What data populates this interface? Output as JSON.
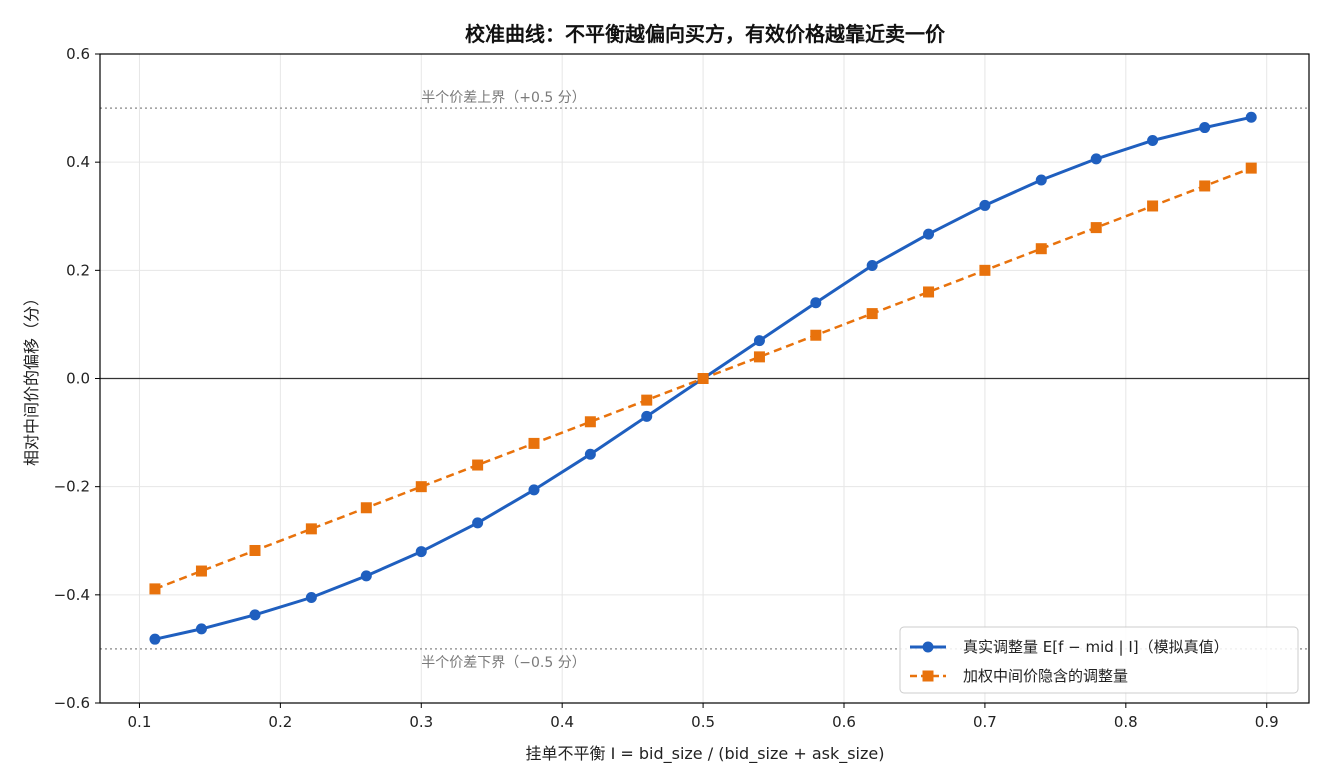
{
  "chart_data": {
    "type": "line",
    "title": "校准曲线：不平衡越偏向买方，有效价格越靠近卖一价",
    "xlabel": "挂单不平衡 I = bid_size / (bid_size + ask_size)",
    "ylabel": "相对中间价的偏移（分）",
    "xlim": [
      0.072,
      0.93
    ],
    "ylim": [
      -0.6,
      0.6
    ],
    "x_ticks": [
      0.1,
      0.2,
      0.3,
      0.4,
      0.5,
      0.6,
      0.7,
      0.8,
      0.9
    ],
    "x_tick_labels": [
      "0.1",
      "0.2",
      "0.3",
      "0.4",
      "0.5",
      "0.6",
      "0.7",
      "0.8",
      "0.9"
    ],
    "y_ticks": [
      -0.6,
      -0.4,
      -0.2,
      0.0,
      0.2,
      0.4,
      0.6
    ],
    "y_tick_labels": [
      "−0.6",
      "−0.4",
      "−0.2",
      "0.0",
      "0.2",
      "0.4",
      "0.6"
    ],
    "grid": true,
    "legend_position": "lower-right",
    "x": [
      0.111,
      0.144,
      0.182,
      0.222,
      0.261,
      0.3,
      0.34,
      0.38,
      0.42,
      0.46,
      0.5,
      0.54,
      0.58,
      0.62,
      0.66,
      0.7,
      0.74,
      0.779,
      0.819,
      0.856,
      0.889
    ],
    "series": [
      {
        "name": "真实调整量 E[f − mid | I]（模拟真值）",
        "color": "#1f5fbf",
        "marker": "circle",
        "line_style": "solid",
        "values": [
          -0.482,
          -0.463,
          -0.437,
          -0.405,
          -0.365,
          -0.32,
          -0.267,
          -0.206,
          -0.14,
          -0.07,
          0.0,
          0.07,
          0.14,
          0.209,
          0.267,
          0.32,
          0.367,
          0.406,
          0.44,
          0.464,
          0.483
        ]
      },
      {
        "name": "加权中间价隐含的调整量",
        "color": "#e8720c",
        "marker": "square",
        "line_style": "dashed",
        "values": [
          -0.389,
          -0.356,
          -0.318,
          -0.278,
          -0.239,
          -0.2,
          -0.16,
          -0.12,
          -0.08,
          -0.04,
          0.0,
          0.04,
          0.08,
          0.12,
          0.16,
          0.2,
          0.24,
          0.279,
          0.319,
          0.356,
          0.389
        ]
      }
    ],
    "reference_lines": [
      {
        "y": 0.5,
        "label": "半个价差上界（+0.5 分）",
        "label_x": 0.3
      },
      {
        "y": -0.5,
        "label": "半个价差下界（−0.5 分）",
        "label_x": 0.3
      },
      {
        "y": 0.0,
        "label": ""
      }
    ],
    "colors": {
      "grid": "#e6e6e6",
      "axis": "#000000",
      "reference_line": "#9a9a9a",
      "zero_line": "#333333"
    }
  }
}
